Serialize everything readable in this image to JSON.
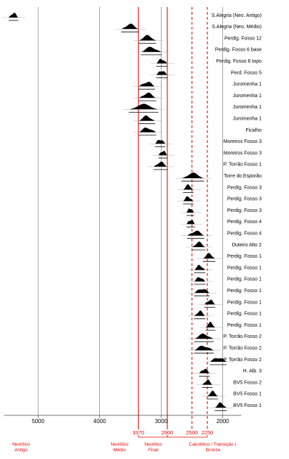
{
  "chart_data": {
    "type": "range",
    "categories": [
      "S.Alegria (Neo. Antigo)",
      "S.Alegria (Neo. Médio)",
      "Perdig. Fosso 12",
      "Perdig. Fosso 6 base",
      "Perdig. Fosso 6 topo",
      "Perd. Fosso 5",
      "Juromenha 1",
      "Juromenha 1",
      "Juromenha 1",
      "Juromenha 1",
      "Ficalho",
      "Moreiros Fosso 3",
      "Moreiros Fosso 3",
      "P. Torrão Fosso 1",
      "Torre do Esporão",
      "Perdig. Fosso 3",
      "Perdig. Fosso 3",
      "Perdig. Fosso 3",
      "Perdig. Fosso 4",
      "Perdig. Fosso 4",
      "Outeiro Alto 2",
      "Perdig. Fosso 1",
      "Perdig. Fosso 1",
      "Perdig. Fosso 1",
      "Perdig. Fosso 1",
      "Perdig. Fosso 1",
      "Perdig. Fosso 1",
      "Perdig. Fosso 1",
      "P. Torrão Fosso 2",
      "P. Torrão Fosso 2",
      "P. Torrão Fosso 2",
      "H. Alb. 3",
      "BV5 Fosso 2",
      "BV5 Fosso 1",
      "BV5 Fosso 1"
    ],
    "ranges": [
      [
        5480,
        5320
      ],
      [
        3650,
        3365
      ],
      [
        3365,
        3080
      ],
      [
        3330,
        2990
      ],
      [
        3080,
        2900
      ],
      [
        3080,
        2900
      ],
      [
        3365,
        3100
      ],
      [
        3365,
        3080
      ],
      [
        3525,
        3045
      ],
      [
        3365,
        3100
      ],
      [
        3365,
        3080
      ],
      [
        3100,
        2930
      ],
      [
        3045,
        2900
      ],
      [
        3125,
        2900
      ],
      [
        2670,
        2300
      ],
      [
        2645,
        2475
      ],
      [
        2645,
        2475
      ],
      [
        2590,
        2465
      ],
      [
        2590,
        2450
      ],
      [
        2580,
        2300
      ],
      [
        2500,
        2280
      ],
      [
        2325,
        2120
      ],
      [
        2465,
        2280
      ],
      [
        2465,
        2280
      ],
      [
        2465,
        2210
      ],
      [
        2300,
        2120
      ],
      [
        2465,
        2280
      ],
      [
        2280,
        2120
      ],
      [
        2465,
        2145
      ],
      [
        2465,
        2145
      ],
      [
        2210,
        1935
      ],
      [
        2385,
        2210
      ],
      [
        2335,
        2165
      ],
      [
        2255,
        2075
      ],
      [
        2130,
        1935
      ]
    ],
    "color": "#000",
    "xlim": [
      5550,
      1700
    ],
    "xticks": [
      5000,
      4000,
      3000,
      2000
    ],
    "grid": true,
    "reference_lines": [
      {
        "value": 3370,
        "style": "solid"
      },
      {
        "value": 2900,
        "style": "solid"
      },
      {
        "value": 2500,
        "style": "dashed"
      },
      {
        "value": 2250,
        "style": "dashed"
      }
    ],
    "reference_color": "#e00",
    "periods": [
      "Neolítico Antigo",
      "Neolítico Médio",
      "Neolítico Final",
      "Calcolítico / Transição I. Bronze"
    ]
  }
}
